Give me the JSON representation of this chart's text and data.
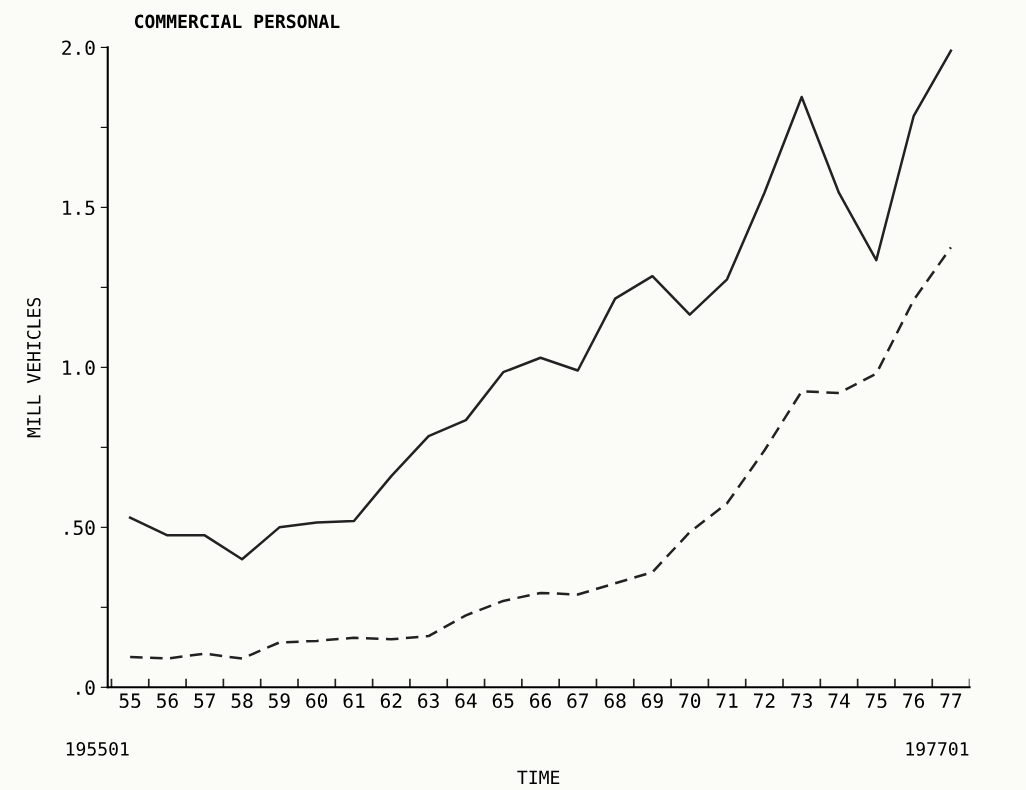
{
  "chart_data": {
    "type": "line",
    "title": "COMMERCIAL PERSONAL",
    "xlabel": "TIME",
    "ylabel": "MILL VEHICLES",
    "categories": [
      "55",
      "56",
      "57",
      "58",
      "59",
      "60",
      "61",
      "62",
      "63",
      "64",
      "65",
      "66",
      "67",
      "68",
      "69",
      "70",
      "71",
      "72",
      "73",
      "74",
      "75",
      "76",
      "77"
    ],
    "series": [
      {
        "color": "#222222",
        "line_style": "solid",
        "values": [
          0.53,
          0.475,
          0.475,
          0.4,
          0.5,
          0.515,
          0.52,
          0.66,
          0.785,
          0.835,
          0.985,
          1.03,
          0.99,
          1.215,
          1.285,
          1.165,
          1.275,
          1.545,
          1.845,
          1.545,
          1.335,
          1.785,
          1.99
        ]
      },
      {
        "color": "#222222",
        "line_style": "dashed",
        "values": [
          0.095,
          0.09,
          0.105,
          0.09,
          0.14,
          0.145,
          0.155,
          0.15,
          0.16,
          0.225,
          0.27,
          0.295,
          0.29,
          0.325,
          0.36,
          0.485,
          0.575,
          0.74,
          0.925,
          0.92,
          0.98,
          1.21,
          1.375
        ]
      }
    ],
    "ylim": [
      0,
      2.0
    ],
    "yticks": [
      {
        "value": 0,
        "label": ".0"
      },
      {
        "value": 0.25,
        "label": null
      },
      {
        "value": 0.5,
        "label": ".50"
      },
      {
        "value": 0.75,
        "label": null
      },
      {
        "value": 1.0,
        "label": "1.0"
      },
      {
        "value": 1.25,
        "label": null
      },
      {
        "value": 1.5,
        "label": "1.5"
      },
      {
        "value": 1.75,
        "label": null
      },
      {
        "value": 2.0,
        "label": "2.0"
      }
    ],
    "annotations": [
      "195501",
      "197701"
    ],
    "grid": false,
    "marker": "none"
  }
}
